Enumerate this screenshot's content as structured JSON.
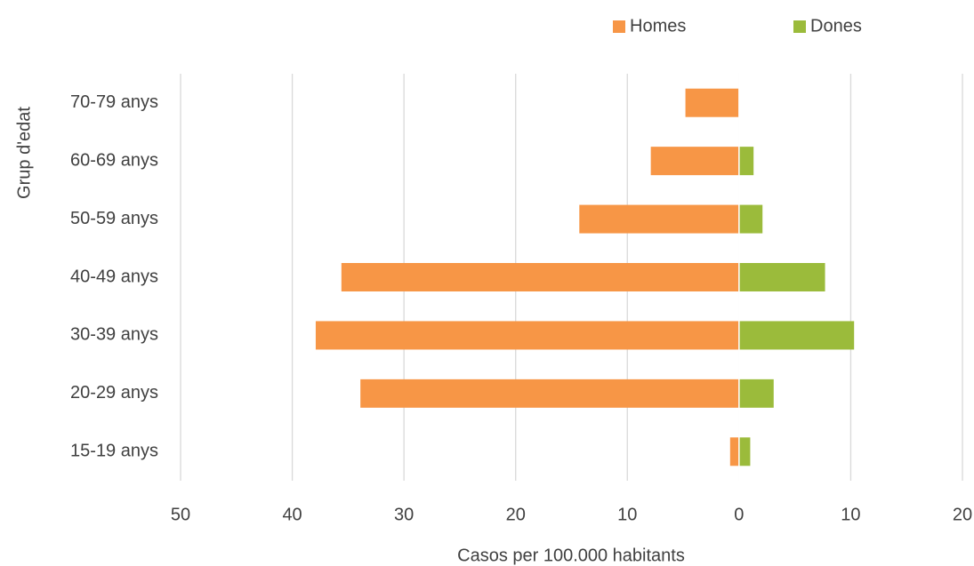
{
  "chart_data": {
    "type": "bar",
    "orientation": "horizontal",
    "stacked": true,
    "x_label": "Casos per 100.000 habitants",
    "y_label": "Grup d'edat",
    "categories": [
      "70-79 anys",
      "60-69 anys",
      "50-59 anys",
      "40-49 anys",
      "30-39 anys",
      "20-29 anys",
      "15-19 anys"
    ],
    "series": [
      {
        "name": "Homes",
        "color": "#f79646",
        "values": [
          -4.8,
          -7.9,
          -14.3,
          -35.6,
          -37.9,
          -33.9,
          -0.8
        ]
      },
      {
        "name": "Dones",
        "color": "#9bbb3b",
        "values": [
          0,
          1.3,
          2.1,
          7.7,
          10.3,
          3.1,
          1.0
        ]
      }
    ],
    "xlim": [
      -50,
      20
    ],
    "xticks": [
      {
        "value": -50,
        "label": "50"
      },
      {
        "value": -40,
        "label": "40"
      },
      {
        "value": -30,
        "label": "30"
      },
      {
        "value": -20,
        "label": "20"
      },
      {
        "value": -10,
        "label": "10"
      },
      0,
      10,
      20
    ],
    "grid": true,
    "legend": "top"
  }
}
